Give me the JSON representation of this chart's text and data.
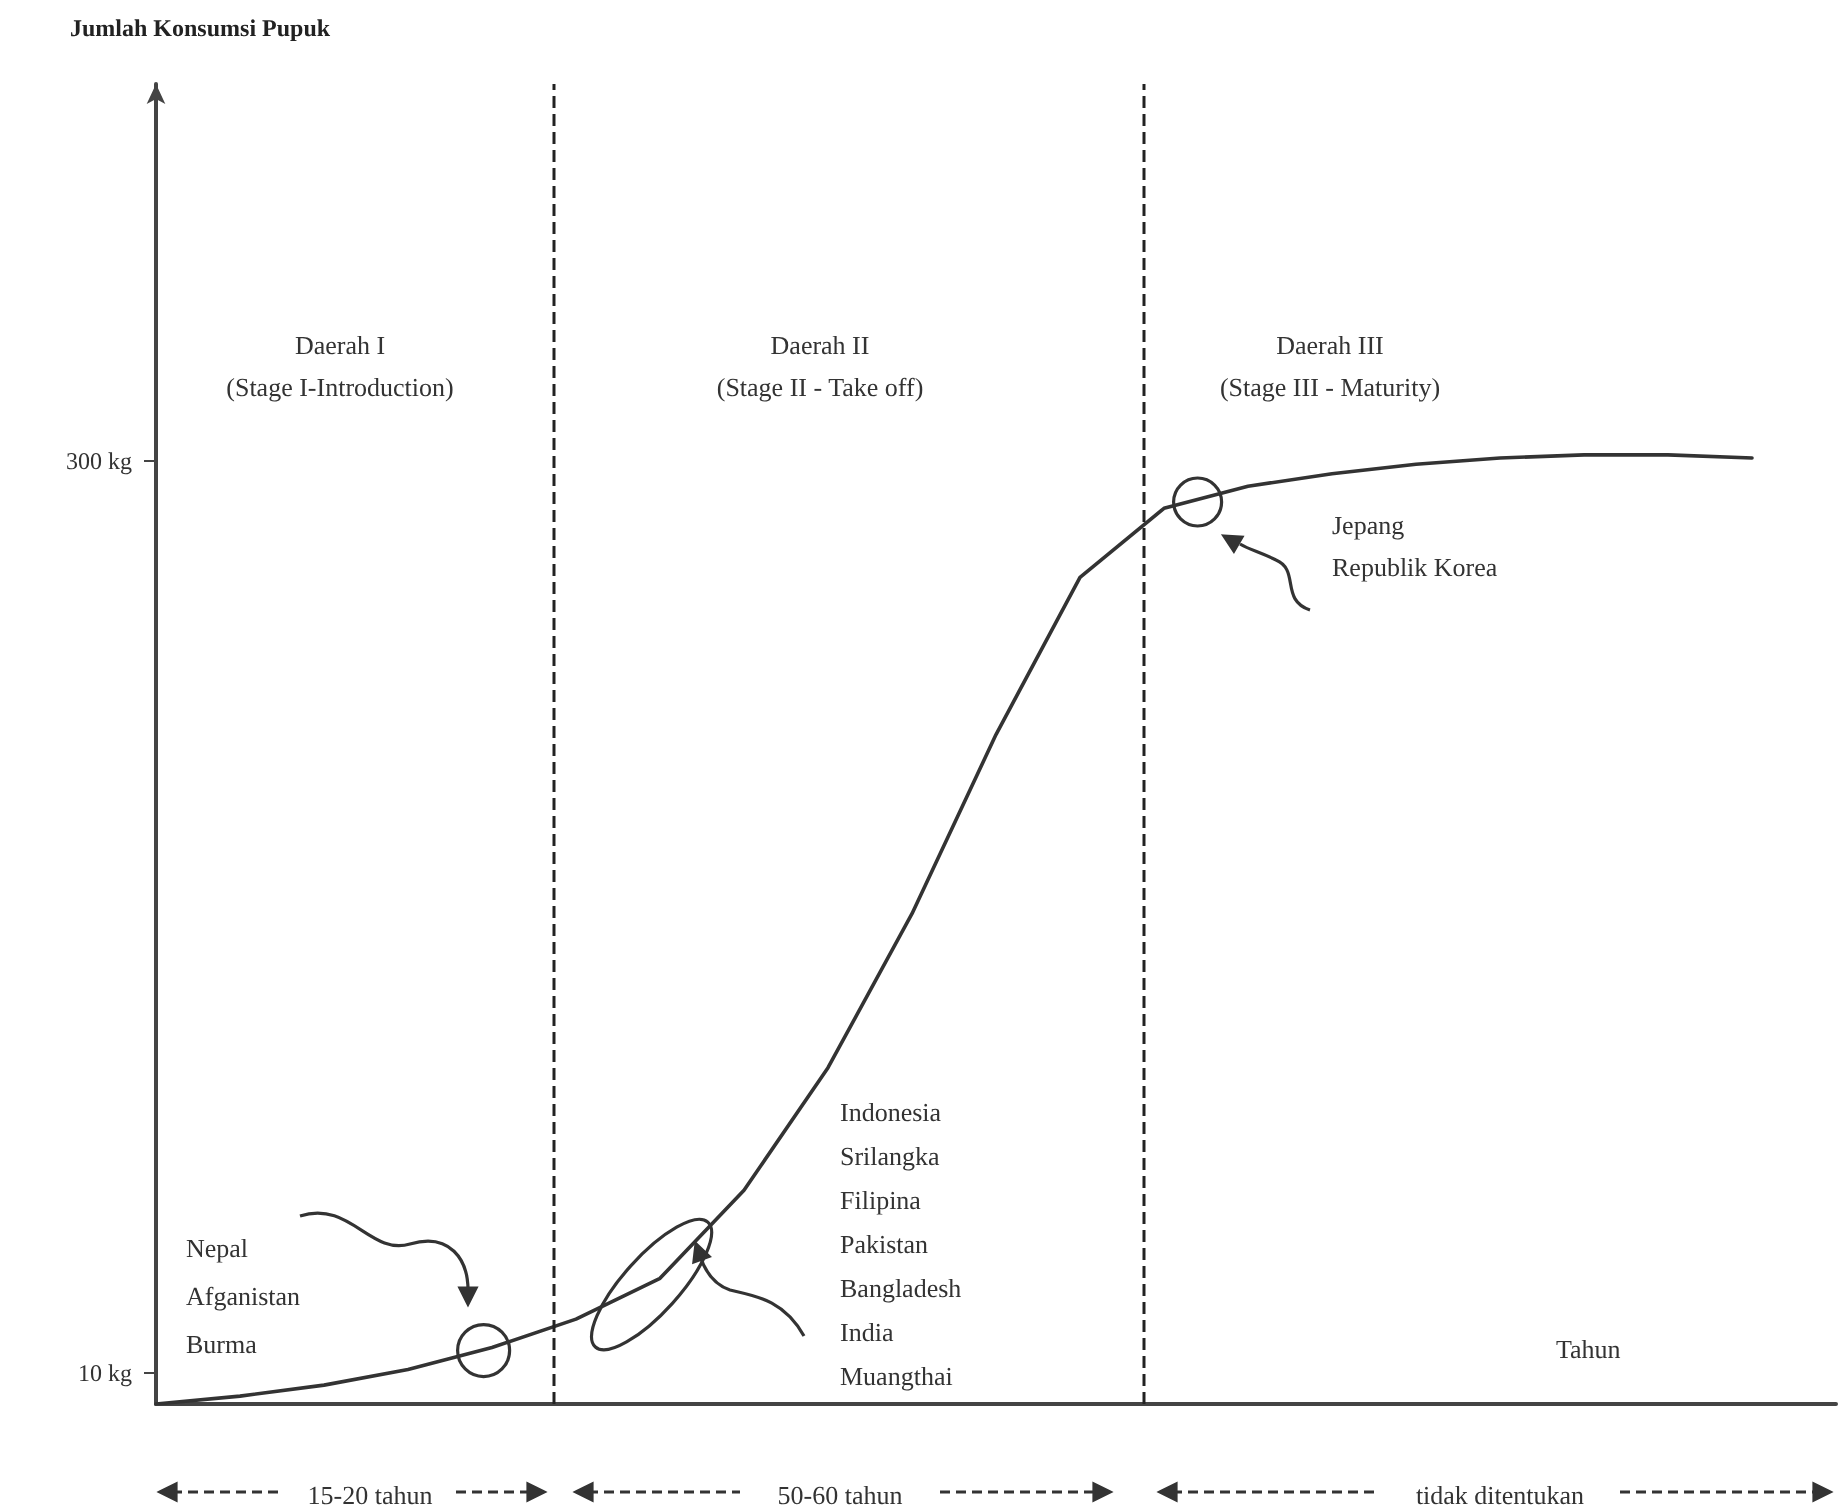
{
  "chart_data": {
    "type": "line",
    "ylabel": "Jumlah Konsumsi Pupuk",
    "xlabel": "Tahun",
    "categories": [
      null,
      null,
      null,
      null,
      null,
      null,
      null,
      null,
      null,
      null,
      null,
      null,
      null,
      null,
      null,
      null,
      null,
      null,
      null,
      null,
      null
    ],
    "values": [
      0,
      2.5,
      6,
      11,
      18,
      27,
      40,
      68,
      107,
      156,
      213,
      263,
      285,
      292,
      296,
      299,
      301,
      302,
      302,
      301,
      null
    ],
    "color": "#333333",
    "marker": "none",
    "line_style": "solid",
    "ylim": [
      0,
      420
    ],
    "yticks": [
      {
        "value": 10,
        "label": "10 kg"
      },
      {
        "value": 300,
        "label": "300 kg"
      }
    ],
    "tick_labels": "y",
    "grid": false,
    "annotations": [
      "Daerah I\n(Stage I-Introduction)",
      "Daerah II\n(Stage II - Take off)",
      "Daerah III\n(Stage III - Maturity)",
      "Nepal\nAfganistan\nBurma",
      "Indonesia\nSrilangka\nFilipina\nPakistan\nBangladesh\nIndia\nMuangthai",
      "Jepang\nRepublik Korea",
      "15-20 tahun",
      "50-60 tahun",
      "tidak ditentukan"
    ]
  }
}
